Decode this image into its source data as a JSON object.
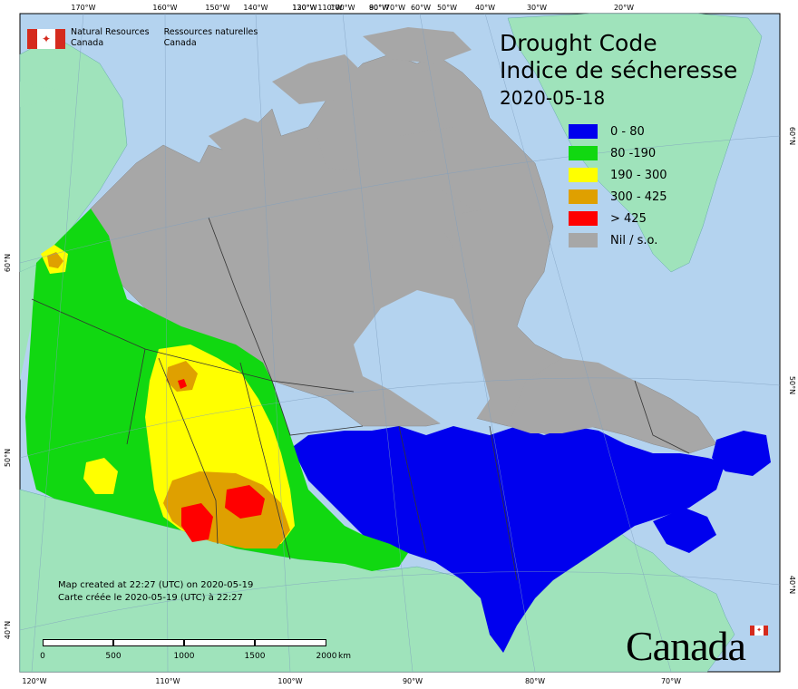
{
  "title": {
    "en": "Drought Code",
    "fr": "Indice de sécheresse",
    "date": "2020-05-18"
  },
  "agency": {
    "en_line1": "Natural Resources",
    "en_line2": "Canada",
    "fr_line1": "Ressources naturelles",
    "fr_line2": "Canada"
  },
  "legend": [
    {
      "label": "0 - 80",
      "color": "#0000ee"
    },
    {
      "label": "80 -190",
      "color": "#11d811"
    },
    {
      "label": "190 - 300",
      "color": "#ffff00"
    },
    {
      "label": "300 - 425",
      "color": "#dfa000"
    },
    {
      "label": "> 425",
      "color": "#ff0000"
    },
    {
      "label": "Nil / s.o.",
      "color": "#a7a7a7"
    }
  ],
  "credits": {
    "en": "Map created at 22:27 (UTC) on 2020-05-19",
    "fr": "Carte créée le 2020-05-19 (UTC) à 22:27"
  },
  "scale": {
    "labels": [
      "0",
      "500",
      "1000",
      "1500",
      "2000"
    ],
    "unit": "km"
  },
  "wordmark": "Canada",
  "graticule": {
    "top_labels": [
      "170°W",
      "160°W",
      "150°W",
      "140°W",
      "130°W",
      "120°W",
      "110°W",
      "100°W",
      "90°W",
      "80°W",
      "70°W",
      "60°W",
      "50°W",
      "40°W",
      "30°W",
      "20°W"
    ],
    "bottom_labels": [
      "120°W",
      "110°W",
      "100°W",
      "90°W",
      "80°W",
      "70°W"
    ],
    "left_labels": [
      "60°N",
      "50°N",
      "40°N"
    ],
    "right_labels": [
      "60°N",
      "50°N",
      "40°N"
    ]
  },
  "colors": {
    "ocean": "#b4d3ef",
    "foreign_land": "#9fe3bb",
    "nil": "#a7a7a7",
    "border": "#333333"
  }
}
